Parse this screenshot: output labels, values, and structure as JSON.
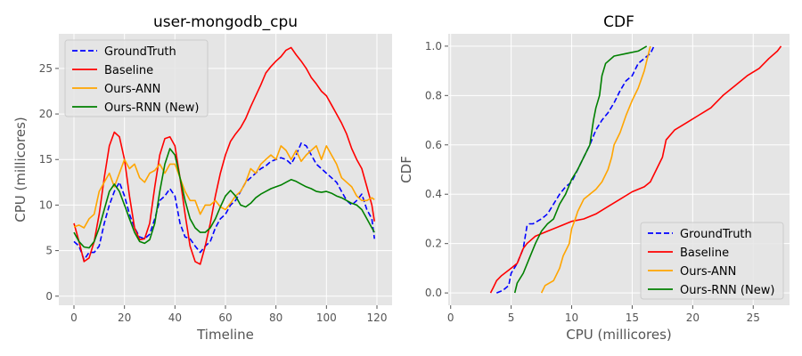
{
  "colors": {
    "background": "#e5e5e5",
    "grid": "#ffffff",
    "groundtruth": "#0000ff",
    "baseline": "#ff0000",
    "ann": "#ffa500",
    "rnn": "#008000"
  },
  "chart_data": [
    {
      "type": "line",
      "title": "user-mongodb_cpu",
      "xlabel": "Timeline",
      "ylabel": "CPU (millicores)",
      "xlim": [
        -6,
        126
      ],
      "ylim": [
        -1.0,
        28.8
      ],
      "xticks": [
        0,
        20,
        40,
        60,
        80,
        100,
        120
      ],
      "yticks": [
        0,
        5,
        10,
        15,
        20,
        25
      ],
      "grid": true,
      "legend": "top-left",
      "series": [
        {
          "name": "GroundTruth",
          "style": "dashed",
          "color": "#0000ff",
          "x": [
            0,
            2,
            4,
            6,
            8,
            10,
            12,
            14,
            16,
            18,
            20,
            22,
            24,
            26,
            28,
            30,
            32,
            34,
            36,
            38,
            40,
            42,
            44,
            46,
            48,
            50,
            52,
            54,
            56,
            58,
            60,
            62,
            64,
            66,
            68,
            70,
            72,
            74,
            76,
            78,
            80,
            82,
            84,
            86,
            88,
            90,
            92,
            94,
            96,
            98,
            100,
            102,
            104,
            106,
            108,
            110,
            112,
            114,
            116,
            118,
            119
          ],
          "y": [
            6.0,
            5.5,
            4.0,
            4.8,
            4.8,
            5.5,
            8.0,
            10.0,
            11.5,
            12.5,
            11.0,
            9.0,
            7.5,
            6.5,
            6.3,
            6.8,
            8.5,
            10.5,
            11.0,
            11.8,
            11.0,
            8.0,
            6.5,
            6.3,
            5.5,
            4.8,
            5.5,
            6.0,
            7.5,
            8.5,
            9.0,
            10.0,
            10.5,
            11.5,
            12.5,
            13.0,
            13.5,
            14.0,
            14.3,
            14.8,
            15.0,
            15.2,
            15.0,
            14.5,
            15.5,
            16.8,
            16.5,
            15.5,
            14.5,
            14.0,
            13.5,
            13.0,
            12.5,
            11.5,
            10.5,
            10.0,
            10.5,
            11.2,
            9.5,
            8.5,
            6.3
          ]
        },
        {
          "name": "Baseline",
          "style": "solid",
          "color": "#ff0000",
          "x": [
            0,
            2,
            4,
            6,
            8,
            10,
            12,
            14,
            16,
            18,
            20,
            22,
            24,
            26,
            28,
            30,
            32,
            34,
            36,
            38,
            40,
            42,
            44,
            46,
            48,
            50,
            52,
            54,
            56,
            58,
            60,
            62,
            64,
            66,
            68,
            70,
            72,
            74,
            76,
            78,
            80,
            82,
            84,
            86,
            88,
            90,
            92,
            94,
            96,
            98,
            100,
            102,
            104,
            106,
            108,
            110,
            112,
            114,
            116,
            118,
            119
          ],
          "y": [
            8.0,
            6.0,
            3.8,
            4.2,
            6.0,
            9.0,
            13.0,
            16.5,
            18.0,
            17.5,
            15.0,
            11.0,
            7.5,
            6.2,
            6.3,
            8.0,
            12.0,
            15.5,
            17.3,
            17.5,
            16.5,
            13.0,
            9.0,
            5.5,
            3.8,
            3.5,
            5.5,
            8.0,
            11.0,
            13.5,
            15.5,
            17.0,
            17.8,
            18.5,
            19.5,
            20.8,
            22.0,
            23.2,
            24.5,
            25.2,
            25.8,
            26.3,
            27.0,
            27.3,
            26.5,
            25.8,
            25.0,
            24.0,
            23.3,
            22.5,
            22.0,
            21.0,
            20.0,
            19.0,
            17.8,
            16.2,
            15.0,
            14.0,
            12.0,
            10.0,
            8.2
          ]
        },
        {
          "name": "Ours-ANN",
          "style": "solid",
          "color": "#ffa500",
          "x": [
            0,
            2,
            4,
            6,
            8,
            10,
            12,
            14,
            16,
            18,
            20,
            22,
            24,
            26,
            28,
            30,
            32,
            34,
            36,
            38,
            40,
            42,
            44,
            46,
            48,
            50,
            52,
            54,
            56,
            58,
            60,
            62,
            64,
            66,
            68,
            70,
            72,
            74,
            76,
            78,
            80,
            82,
            84,
            86,
            88,
            90,
            92,
            94,
            96,
            98,
            100,
            102,
            104,
            106,
            108,
            110,
            112,
            114,
            116,
            118,
            119
          ],
          "y": [
            7.6,
            7.8,
            7.5,
            8.5,
            9.0,
            11.5,
            12.5,
            13.5,
            12.0,
            13.5,
            15.0,
            14.0,
            14.5,
            13.0,
            12.5,
            13.5,
            13.8,
            14.5,
            13.5,
            14.5,
            14.5,
            13.0,
            11.5,
            10.5,
            10.5,
            9.0,
            10.0,
            10.0,
            10.5,
            9.8,
            9.5,
            10.2,
            11.0,
            11.5,
            12.5,
            14.0,
            13.5,
            14.5,
            15.0,
            15.5,
            15.0,
            16.5,
            16.0,
            15.0,
            16.0,
            14.8,
            15.5,
            16.0,
            16.5,
            15.0,
            16.5,
            15.5,
            14.5,
            13.0,
            12.5,
            12.0,
            11.0,
            10.5,
            10.5,
            10.8,
            10.6
          ]
        },
        {
          "name": "Ours-RNN (New)",
          "style": "solid",
          "color": "#008000",
          "x": [
            0,
            2,
            4,
            6,
            8,
            10,
            12,
            14,
            16,
            18,
            20,
            22,
            24,
            26,
            28,
            30,
            32,
            34,
            36,
            38,
            40,
            42,
            44,
            46,
            48,
            50,
            52,
            54,
            56,
            58,
            60,
            62,
            64,
            66,
            68,
            70,
            72,
            74,
            76,
            78,
            80,
            82,
            84,
            86,
            88,
            90,
            92,
            94,
            96,
            98,
            100,
            102,
            104,
            106,
            108,
            110,
            112,
            114,
            116,
            118,
            119
          ],
          "y": [
            7.0,
            6.0,
            5.4,
            5.3,
            6.0,
            7.5,
            9.5,
            11.5,
            12.3,
            11.5,
            10.0,
            8.5,
            7.0,
            6.0,
            5.8,
            6.2,
            8.0,
            11.5,
            14.5,
            16.2,
            15.5,
            13.0,
            10.5,
            8.5,
            7.5,
            7.0,
            7.0,
            7.5,
            8.5,
            9.8,
            11.0,
            11.6,
            11.0,
            10.0,
            9.8,
            10.2,
            10.8,
            11.2,
            11.5,
            11.8,
            12.0,
            12.2,
            12.5,
            12.8,
            12.6,
            12.3,
            12.0,
            11.8,
            11.5,
            11.4,
            11.5,
            11.3,
            11.0,
            10.8,
            10.5,
            10.2,
            10.0,
            9.5,
            8.5,
            7.5,
            7.0
          ]
        }
      ]
    },
    {
      "type": "line",
      "title": "CDF",
      "xlabel": "CPU (millicores)",
      "ylabel": "CDF",
      "xlim": [
        -0.2,
        28.0
      ],
      "ylim": [
        -0.05,
        1.05
      ],
      "xticks": [
        0,
        5,
        10,
        15,
        20,
        25
      ],
      "yticks": [
        0.0,
        0.2,
        0.4,
        0.6,
        0.8,
        1.0
      ],
      "grid": true,
      "legend": "bottom-right",
      "series": [
        {
          "name": "GroundTruth",
          "style": "dashed",
          "color": "#0000ff",
          "x": [
            3.8,
            4.3,
            4.8,
            5.0,
            5.5,
            6.0,
            6.3,
            6.5,
            6.8,
            7.5,
            8.0,
            8.5,
            9.0,
            9.5,
            10.0,
            10.5,
            11.0,
            11.5,
            12.0,
            12.5,
            13.0,
            13.5,
            14.0,
            14.5,
            15.0,
            15.5,
            16.0,
            16.5,
            16.8
          ],
          "y": [
            0.0,
            0.01,
            0.03,
            0.08,
            0.12,
            0.18,
            0.27,
            0.28,
            0.28,
            0.3,
            0.32,
            0.36,
            0.4,
            0.43,
            0.45,
            0.5,
            0.55,
            0.6,
            0.66,
            0.7,
            0.73,
            0.77,
            0.82,
            0.86,
            0.88,
            0.93,
            0.95,
            0.97,
            1.0
          ]
        },
        {
          "name": "Baseline",
          "style": "solid",
          "color": "#ff0000",
          "x": [
            3.3,
            3.5,
            3.8,
            4.2,
            5.0,
            5.5,
            6.0,
            6.3,
            7.0,
            8.0,
            9.0,
            10.0,
            11.0,
            12.0,
            13.0,
            14.0,
            15.0,
            16.0,
            16.5,
            17.0,
            17.5,
            17.8,
            18.5,
            19.5,
            20.5,
            21.5,
            22.5,
            23.5,
            24.5,
            25.5,
            26.3,
            27.0,
            27.3
          ],
          "y": [
            0.0,
            0.02,
            0.05,
            0.07,
            0.1,
            0.12,
            0.18,
            0.2,
            0.23,
            0.25,
            0.27,
            0.29,
            0.3,
            0.32,
            0.35,
            0.38,
            0.41,
            0.43,
            0.45,
            0.5,
            0.55,
            0.62,
            0.66,
            0.69,
            0.72,
            0.75,
            0.8,
            0.84,
            0.88,
            0.91,
            0.95,
            0.98,
            1.0
          ]
        },
        {
          "name": "Ours-ANN",
          "style": "solid",
          "color": "#ffa500",
          "x": [
            7.5,
            7.8,
            8.5,
            9.0,
            9.3,
            9.8,
            10.0,
            10.3,
            10.5,
            11.0,
            11.5,
            12.0,
            12.5,
            13.0,
            13.3,
            13.5,
            14.0,
            14.5,
            15.0,
            15.5,
            16.0,
            16.5
          ],
          "y": [
            0.0,
            0.03,
            0.05,
            0.1,
            0.15,
            0.2,
            0.26,
            0.3,
            0.33,
            0.38,
            0.4,
            0.42,
            0.45,
            0.5,
            0.55,
            0.6,
            0.65,
            0.72,
            0.78,
            0.83,
            0.9,
            1.0
          ]
        },
        {
          "name": "Ours-RNN (New)",
          "style": "solid",
          "color": "#008000",
          "x": [
            5.3,
            5.5,
            6.0,
            6.5,
            7.0,
            7.5,
            8.0,
            8.5,
            9.0,
            9.5,
            10.0,
            10.5,
            11.0,
            11.3,
            11.5,
            11.8,
            12.0,
            12.3,
            12.5,
            12.8,
            13.5,
            14.5,
            15.5,
            16.2
          ],
          "y": [
            0.0,
            0.04,
            0.08,
            0.14,
            0.2,
            0.25,
            0.28,
            0.3,
            0.36,
            0.4,
            0.46,
            0.5,
            0.55,
            0.58,
            0.6,
            0.7,
            0.75,
            0.8,
            0.88,
            0.93,
            0.96,
            0.97,
            0.98,
            1.0
          ]
        }
      ]
    }
  ]
}
